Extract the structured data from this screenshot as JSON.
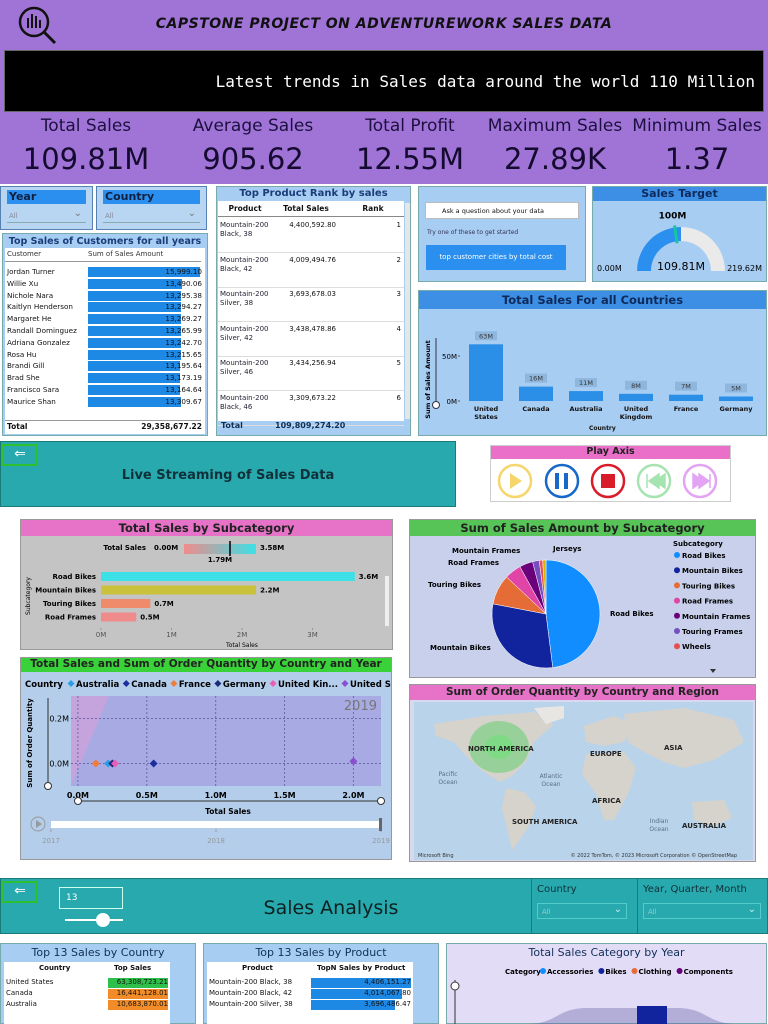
{
  "header": {
    "title": "CAPSTONE PROJECT ON ADVENTUREWORK SALES DATA"
  },
  "ticker": "Latest trends in Sales data around the world 110 Million",
  "kpis": [
    {
      "label": "Total Sales",
      "value": "109.81M"
    },
    {
      "label": "Average Sales",
      "value": "905.62"
    },
    {
      "label": "Total Profit",
      "value": "12.55M"
    },
    {
      "label": "Maximum Sales",
      "value": "27.89K"
    },
    {
      "label": "Minimum Sales",
      "value": "1.37"
    }
  ],
  "filters": [
    {
      "label": "Year",
      "value": "All"
    },
    {
      "label": "Country",
      "value": "All"
    }
  ],
  "customers": {
    "title": "Top Sales of Customers for all years",
    "columns": [
      "Customer",
      "Sum of Sales Amount"
    ],
    "rows": [
      [
        "Jordan Turner",
        "15,999.10"
      ],
      [
        "Willie Xu",
        "13,490.06"
      ],
      [
        "Nichole Nara",
        "13,295.38"
      ],
      [
        "Kaitlyn Henderson",
        "13,294.27"
      ],
      [
        "Margaret He",
        "13,269.27"
      ],
      [
        "Randall Dominguez",
        "13,265.99"
      ],
      [
        "Adriana Gonzalez",
        "13,242.70"
      ],
      [
        "Rosa Hu",
        "13,215.65"
      ],
      [
        "Brandi Gill",
        "13,195.64"
      ],
      [
        "Brad She",
        "13,173.19"
      ],
      [
        "Francisco Sara",
        "13,164.64"
      ],
      [
        "Maurice Shan",
        "13,309.67"
      ]
    ],
    "total": [
      "Total",
      "29,358,677.22"
    ]
  },
  "products": {
    "title": "Top Product Rank by sales",
    "columns": [
      "Product",
      "Total Sales",
      "Rank"
    ],
    "rows": [
      [
        "Mountain-200 Black, 38",
        "4,400,592.80",
        1
      ],
      [
        "Mountain-200 Black, 42",
        "4,009,494.76",
        2
      ],
      [
        "Mountain-200 Silver, 38",
        "3,693,678.03",
        3
      ],
      [
        "Mountain-200 Silver, 42",
        "3,438,478.86",
        4
      ],
      [
        "Mountain-200 Silver, 46",
        "3,434,256.94",
        5
      ],
      [
        "Mountain-200 Black, 46",
        "3,309,673.22",
        6
      ]
    ],
    "total": [
      "Total",
      "109,809,274.20"
    ]
  },
  "qa": {
    "prompt": "Ask a question about your data",
    "hint": "Try one of these to get started",
    "suggestion": "top customer cities by total cost"
  },
  "gauge": {
    "title": "Sales Target",
    "min": {
      "value": 0,
      "label": "0.00M"
    },
    "target": {
      "value": 100,
      "label": "100M"
    },
    "value": {
      "value": 109.81,
      "label": "109.81M"
    },
    "max": {
      "value": 219.62,
      "label": "219.62M"
    }
  },
  "country_sales": {
    "title": "Total Sales For all Countries",
    "y_label": "Sum of Sales Amount",
    "x_label": "Country",
    "categories": [
      "United States",
      "Canada",
      "Australia",
      "United Kingdom",
      "France",
      "Germany"
    ],
    "values": [
      63,
      16,
      11,
      8,
      7,
      5
    ],
    "value_labels": [
      "63M",
      "16M",
      "11M",
      "8M",
      "7M",
      "5M"
    ],
    "ylim": [
      0,
      70
    ],
    "yticks": [
      {
        "value": 0,
        "label": "0M"
      },
      {
        "value": 50,
        "label": "50M"
      }
    ],
    "color": "#2b8fe8"
  },
  "streaming": {
    "title": "Live Streaming of Sales Data"
  },
  "play_axis": {
    "title": "Play Axis"
  },
  "subcategory_bar": {
    "title": "Total Sales by Subcategory",
    "legend_title": "Total Sales",
    "legend_min": "0.00M",
    "legend_mid": "1.79M",
    "legend_max": "3.58M",
    "y_label": "Subcategory",
    "x_label": "Total Sales",
    "categories": [
      "Road Bikes",
      "Mountain Bikes",
      "Touring Bikes",
      "Road Frames"
    ],
    "values": [
      3.6,
      2.2,
      0.7,
      0.5
    ],
    "value_labels": [
      "3.6M",
      "2.2M",
      "0.7M",
      "0.5M"
    ],
    "colors": [
      "#3de0e6",
      "#c9c23a",
      "#ef8a6a",
      "#f08b8b"
    ],
    "xlim": [
      0,
      4
    ],
    "xticks": [
      {
        "value": 0,
        "label": "0M"
      },
      {
        "value": 1,
        "label": "1M"
      },
      {
        "value": 2,
        "label": "2M"
      },
      {
        "value": 3,
        "label": "3M"
      }
    ]
  },
  "subcategory_pie": {
    "title": "Sum of Sales Amount by Subcategory",
    "legend_title": "Subcategory",
    "slices": [
      {
        "name": "Road Bikes",
        "value": 48,
        "color": "#118dff"
      },
      {
        "name": "Mountain Bikes",
        "value": 30,
        "color": "#12239e"
      },
      {
        "name": "Touring Bikes",
        "value": 9,
        "color": "#e66c37"
      },
      {
        "name": "Road Frames",
        "value": 5,
        "color": "#e044a7"
      },
      {
        "name": "Mountain Frames",
        "value": 4,
        "color": "#6b007b"
      },
      {
        "name": "Touring Frames",
        "value": 2,
        "color": "#744ec2"
      },
      {
        "name": "Wheels",
        "value": 1,
        "color": "#e64f4f"
      },
      {
        "name": "Jerseys",
        "value": 1,
        "color": "#d9b300"
      }
    ]
  },
  "order_scatter": {
    "title": "Total Sales and Sum of Order Quantity by Country and Year",
    "legend_title": "Country",
    "y_label": "Sum of Order Quantity",
    "x_label": "Total Sales",
    "year": 2019,
    "timeline": [
      2017,
      2018,
      2019
    ],
    "series": [
      {
        "name": "Australia",
        "color": "#2b9de8",
        "x": 0.22,
        "y": 0
      },
      {
        "name": "Canada",
        "color": "#1c2f9e",
        "x": 0.55,
        "y": 0
      },
      {
        "name": "France",
        "color": "#f07c3a",
        "x": 0.13,
        "y": 0
      },
      {
        "name": "Germany",
        "color": "#1b2a7a",
        "x": 0.25,
        "y": 0
      },
      {
        "name": "United Kin...",
        "color": "#e85fb5",
        "x": 0.27,
        "y": 0
      },
      {
        "name": "United St...",
        "color": "#8a4fcf",
        "x": 2.0,
        "y": 0.01
      }
    ],
    "xlim": [
      -0.05,
      2.2
    ],
    "ylim": [
      -0.1,
      0.3
    ],
    "xticks": [
      {
        "value": 0,
        "label": "0.0M"
      },
      {
        "value": 0.5,
        "label": "0.5M"
      },
      {
        "value": 1,
        "label": "1.0M"
      },
      {
        "value": 1.5,
        "label": "1.5M"
      },
      {
        "value": 2,
        "label": "2.0M"
      }
    ],
    "yticks": [
      {
        "value": 0,
        "label": "0.0M"
      },
      {
        "value": 0.2,
        "label": "0.2M"
      }
    ],
    "grid": true
  },
  "map": {
    "title": "Sum of Order Quantity by Country and Region",
    "labels": [
      "NORTH AMERICA",
      "EUROPE",
      "ASIA",
      "Pacific Ocean",
      "Atlantic Ocean",
      "AFRICA",
      "SOUTH AMERICA",
      "Indian Ocean",
      "AUSTRALIA"
    ],
    "credit": "© 2022 TomTom, © 2023 Microsoft Corporation © OpenStreetMap",
    "brand": "Microsoft Bing"
  },
  "sales_analysis": {
    "title": "Sales Analysis",
    "top_n": 13,
    "filters": [
      {
        "label": "Country",
        "value": "All"
      },
      {
        "label": "Year, Quarter, Month",
        "value": "All"
      }
    ]
  },
  "top_countries": {
    "title": "Top 13 Sales by Country",
    "columns": [
      "Country",
      "Top Sales"
    ],
    "rows": [
      [
        "United States",
        "63,308,723.21"
      ],
      [
        "Canada",
        "16,441,128.01"
      ],
      [
        "Australia",
        "10,683,870.01"
      ]
    ]
  },
  "top_products": {
    "title": "Top 13 Sales by Product",
    "columns": [
      "Product",
      "TopN Sales by Product"
    ],
    "rows": [
      [
        "Mountain-200 Black, 38",
        "4,406,151.27"
      ],
      [
        "Mountain-200 Black, 42",
        "4,014,067.80"
      ],
      [
        "Mountain-200 Silver, 38",
        "3,696,486.47"
      ]
    ]
  },
  "category_year": {
    "title": "Total Sales Category by Year",
    "legend_title": "Category",
    "items": [
      {
        "name": "Accessories",
        "color": "#118dff"
      },
      {
        "name": "Bikes",
        "color": "#12239e"
      },
      {
        "name": "Clothing",
        "color": "#e66c37"
      },
      {
        "name": "Components",
        "color": "#6b007b"
      }
    ]
  }
}
